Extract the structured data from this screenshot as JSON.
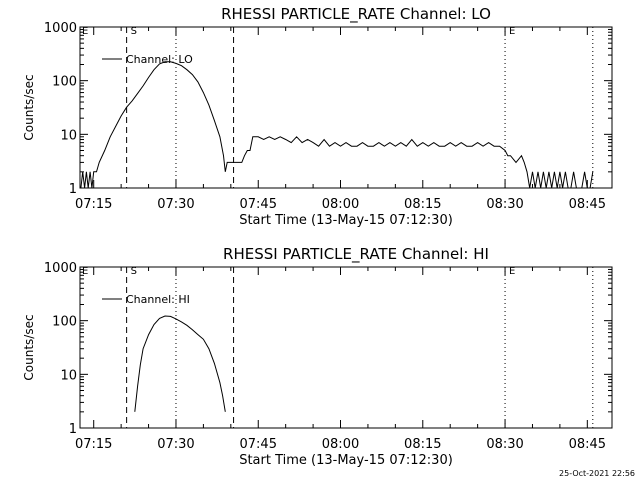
{
  "chart_data": [
    {
      "type": "line",
      "title": "RHESSI PARTICLE_RATE Channel: LO",
      "xlabel": "Start Time (13-May-15 07:12:30)",
      "ylabel": "Counts/sec",
      "yscale": "log",
      "ylim": [
        1,
        1000
      ],
      "xlim": [
        "07:12:30",
        "08:49:30"
      ],
      "xticks": [
        "07:15",
        "07:30",
        "07:45",
        "08:00",
        "08:15",
        "08:30",
        "08:45"
      ],
      "yticks": [
        "1",
        "10",
        "100",
        "1000"
      ],
      "legend": "Channel: LO",
      "legend_position": "top-left",
      "markers": [
        {
          "label": "S",
          "time": "07:21:00",
          "style": "dashed"
        },
        {
          "label": "",
          "time": "07:30:00",
          "style": "dotted"
        },
        {
          "label": "",
          "time": "07:40:30",
          "style": "dashed"
        },
        {
          "label": "E",
          "time": "08:30:00",
          "style": "dotted"
        },
        {
          "label": "",
          "time": "08:46:00",
          "style": "dotted"
        }
      ],
      "series": [
        {
          "name": "Channel: LO",
          "points": [
            [
              "07:12:40",
              1
            ],
            [
              "07:13:00",
              2
            ],
            [
              "07:13:20",
              1
            ],
            [
              "07:13:40",
              2
            ],
            [
              "07:14:00",
              1
            ],
            [
              "07:14:20",
              2
            ],
            [
              "07:14:40",
              1
            ],
            [
              "07:15:00",
              2
            ],
            [
              "07:15:30",
              2
            ],
            [
              "07:16:00",
              3
            ],
            [
              "07:17:00",
              5
            ],
            [
              "07:18:00",
              9
            ],
            [
              "07:19:00",
              14
            ],
            [
              "07:20:00",
              22
            ],
            [
              "07:21:00",
              32
            ],
            [
              "07:22:00",
              42
            ],
            [
              "07:23:00",
              58
            ],
            [
              "07:24:00",
              80
            ],
            [
              "07:25:00",
              115
            ],
            [
              "07:26:00",
              160
            ],
            [
              "07:27:00",
              205
            ],
            [
              "07:28:00",
              225
            ],
            [
              "07:29:00",
              225
            ],
            [
              "07:30:00",
              210
            ],
            [
              "07:31:00",
              190
            ],
            [
              "07:32:00",
              160
            ],
            [
              "07:33:00",
              130
            ],
            [
              "07:34:00",
              95
            ],
            [
              "07:35:00",
              60
            ],
            [
              "07:36:00",
              35
            ],
            [
              "07:37:00",
              18
            ],
            [
              "07:38:00",
              9
            ],
            [
              "07:38:40",
              4
            ],
            [
              "07:39:00",
              2
            ],
            [
              "07:39:20",
              3
            ],
            [
              "07:41:00",
              3
            ],
            [
              "07:42:00",
              3
            ],
            [
              "07:42:30",
              4
            ],
            [
              "07:43:00",
              5
            ],
            [
              "07:43:30",
              5
            ],
            [
              "07:44:00",
              9
            ],
            [
              "07:45:00",
              9
            ],
            [
              "07:46:00",
              8
            ],
            [
              "07:47:00",
              9
            ],
            [
              "07:48:00",
              8
            ],
            [
              "07:49:00",
              9
            ],
            [
              "07:50:00",
              8
            ],
            [
              "07:51:00",
              7
            ],
            [
              "07:52:00",
              9
            ],
            [
              "07:53:00",
              7
            ],
            [
              "07:54:00",
              8
            ],
            [
              "07:55:00",
              7
            ],
            [
              "07:56:00",
              6
            ],
            [
              "07:57:00",
              8
            ],
            [
              "07:58:00",
              6
            ],
            [
              "07:59:00",
              7
            ],
            [
              "08:00:00",
              6
            ],
            [
              "08:01:00",
              7
            ],
            [
              "08:02:00",
              6
            ],
            [
              "08:03:00",
              6
            ],
            [
              "08:04:00",
              7
            ],
            [
              "08:05:00",
              6
            ],
            [
              "08:06:00",
              6
            ],
            [
              "08:07:00",
              7
            ],
            [
              "08:08:00",
              6
            ],
            [
              "08:09:00",
              7
            ],
            [
              "08:10:00",
              6
            ],
            [
              "08:11:00",
              7
            ],
            [
              "08:12:00",
              6
            ],
            [
              "08:13:00",
              8
            ],
            [
              "08:14:00",
              6
            ],
            [
              "08:15:00",
              7
            ],
            [
              "08:16:00",
              6
            ],
            [
              "08:17:00",
              7
            ],
            [
              "08:18:00",
              6
            ],
            [
              "08:19:00",
              6
            ],
            [
              "08:20:00",
              7
            ],
            [
              "08:21:00",
              6
            ],
            [
              "08:22:00",
              7
            ],
            [
              "08:23:00",
              6
            ],
            [
              "08:24:00",
              6
            ],
            [
              "08:25:00",
              7
            ],
            [
              "08:26:00",
              6
            ],
            [
              "08:27:00",
              7
            ],
            [
              "08:28:00",
              6
            ],
            [
              "08:29:00",
              6
            ],
            [
              "08:30:00",
              5
            ],
            [
              "08:30:30",
              4
            ],
            [
              "08:31:00",
              4
            ],
            [
              "08:32:00",
              3
            ],
            [
              "08:33:00",
              4
            ],
            [
              "08:33:30",
              3
            ],
            [
              "08:34:00",
              2
            ],
            [
              "08:34:30",
              1
            ],
            [
              "08:35:00",
              2
            ],
            [
              "08:35:30",
              1
            ],
            [
              "08:36:00",
              2
            ],
            [
              "08:36:30",
              1
            ],
            [
              "08:37:00",
              2
            ],
            [
              "08:37:30",
              1
            ],
            [
              "08:38:00",
              2
            ],
            [
              "08:38:30",
              1
            ],
            [
              "08:39:00",
              2
            ],
            [
              "08:39:30",
              1
            ],
            [
              "08:40:00",
              2
            ],
            [
              "08:40:30",
              1
            ],
            [
              "08:41:00",
              2
            ],
            [
              "08:41:30",
              1
            ],
            [
              "08:42:00",
              1
            ],
            [
              "08:42:30",
              2
            ],
            [
              "08:43:00",
              1
            ],
            [
              "08:43:30",
              1
            ],
            [
              "08:44:00",
              1
            ],
            [
              "08:44:30",
              2
            ],
            [
              "08:45:00",
              1
            ],
            [
              "08:45:30",
              1
            ],
            [
              "08:46:00",
              2
            ]
          ]
        }
      ]
    },
    {
      "type": "line",
      "title": "RHESSI PARTICLE_RATE Channel: HI",
      "xlabel": "Start Time (13-May-15 07:12:30)",
      "ylabel": "Counts/sec",
      "yscale": "log",
      "ylim": [
        1,
        1000
      ],
      "xlim": [
        "07:12:30",
        "08:49:30"
      ],
      "xticks": [
        "07:15",
        "07:30",
        "07:45",
        "08:00",
        "08:15",
        "08:30",
        "08:45"
      ],
      "yticks": [
        "1",
        "10",
        "100",
        "1000"
      ],
      "legend": "Channel: HI",
      "legend_position": "top-left",
      "markers": [
        {
          "label": "S",
          "time": "07:21:00",
          "style": "dashed"
        },
        {
          "label": "",
          "time": "07:30:00",
          "style": "dotted"
        },
        {
          "label": "",
          "time": "07:40:30",
          "style": "dashed"
        },
        {
          "label": "E",
          "time": "08:30:00",
          "style": "dotted"
        },
        {
          "label": "",
          "time": "08:46:00",
          "style": "dotted"
        }
      ],
      "series": [
        {
          "name": "Channel: HI",
          "points": [
            [
              "07:22:30",
              2
            ],
            [
              "07:23:00",
              6
            ],
            [
              "07:23:30",
              15
            ],
            [
              "07:24:00",
              30
            ],
            [
              "07:25:00",
              55
            ],
            [
              "07:26:00",
              85
            ],
            [
              "07:27:00",
              110
            ],
            [
              "07:28:00",
              122
            ],
            [
              "07:29:00",
              120
            ],
            [
              "07:30:00",
              108
            ],
            [
              "07:31:00",
              95
            ],
            [
              "07:32:00",
              82
            ],
            [
              "07:33:00",
              68
            ],
            [
              "07:34:00",
              55
            ],
            [
              "07:35:00",
              45
            ],
            [
              "07:36:00",
              30
            ],
            [
              "07:37:00",
              16
            ],
            [
              "07:38:00",
              7
            ],
            [
              "07:38:30",
              4
            ],
            [
              "07:39:00",
              2
            ]
          ]
        }
      ]
    }
  ],
  "footer": {
    "timestamp": "25-Oct-2021 22:56"
  }
}
